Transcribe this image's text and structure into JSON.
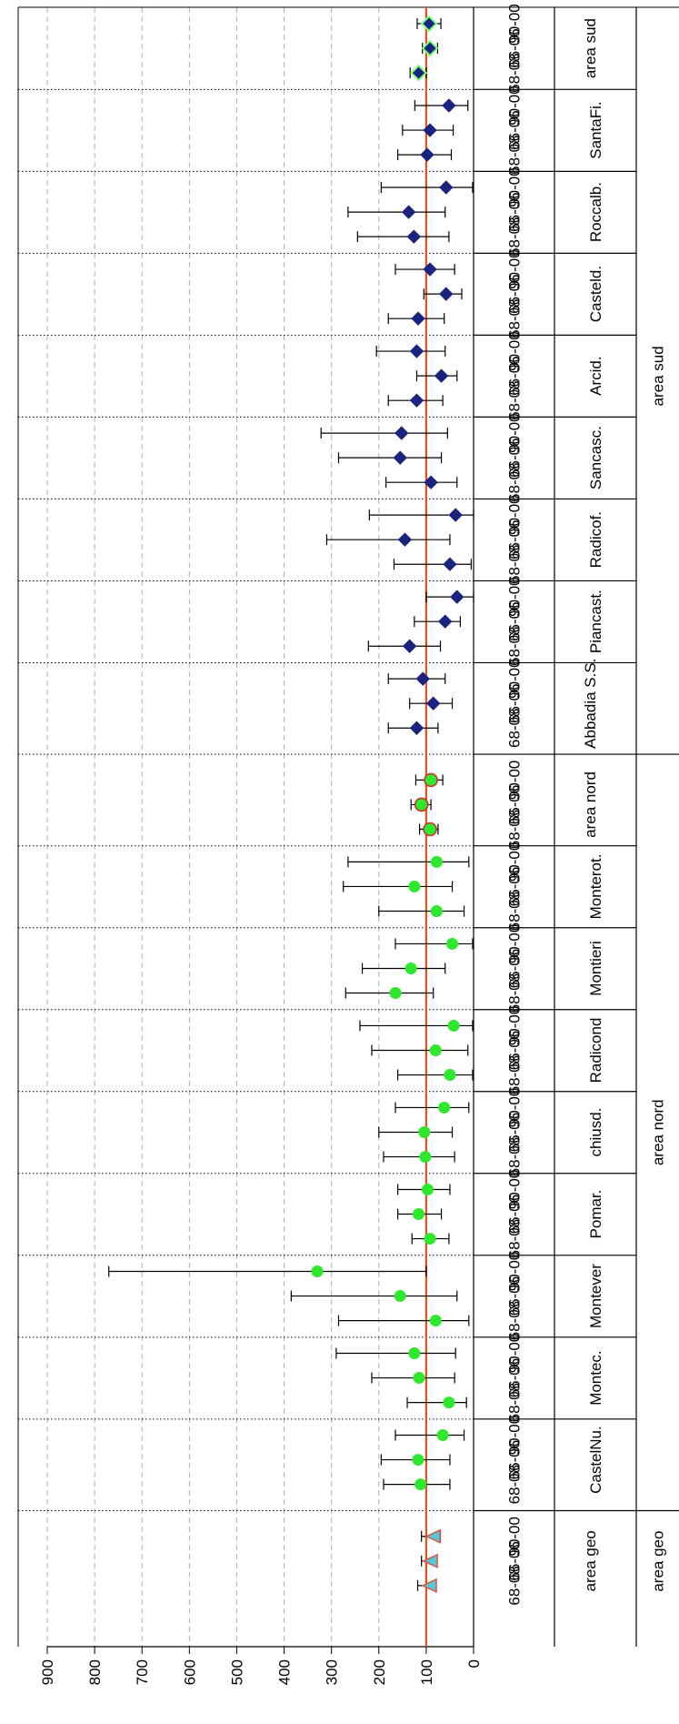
{
  "chart_data": {
    "type": "scatter",
    "orientation": "rotated-90",
    "value_axis": {
      "min": 0,
      "max": 900,
      "ticks": [
        "0",
        "100",
        "200",
        "300",
        "400",
        "500",
        "600",
        "700",
        "800",
        "900"
      ]
    },
    "reference_line": {
      "value": 100,
      "color": "#e0521b"
    },
    "colors": {
      "area_sud_point": "#1a237e",
      "area_sud_summary": "#7cff7c",
      "area_nord_point": "#2ee82e",
      "area_nord_summary_edge": "#d0312d",
      "area_geo_point": "#58c7d6",
      "area_geo_edge": "#e2503c",
      "grid": "#b0b0b0"
    },
    "groups": [
      {
        "label": "area sud",
        "sites": [
          {
            "name": "area sud",
            "marker": "diamond-summary",
            "periods": [
              {
                "period": "90-00",
                "value": 94,
                "low": 69,
                "high": 119
              },
              {
                "period": "66-06",
                "value": 92,
                "low": 76,
                "high": 108
              },
              {
                "period": "68-08",
                "value": 116,
                "low": 100,
                "high": 134
              }
            ]
          },
          {
            "name": "SantaFi.",
            "marker": "diamond",
            "periods": [
              {
                "period": "90-00",
                "value": 52,
                "low": 12,
                "high": 124
              },
              {
                "period": "66-06",
                "value": 92,
                "low": 43,
                "high": 150
              },
              {
                "period": "68-08",
                "value": 98,
                "low": 47,
                "high": 160
              }
            ]
          },
          {
            "name": "Roccalb.",
            "marker": "diamond",
            "periods": [
              {
                "period": "90-00",
                "value": 58,
                "low": 2,
                "high": 195
              },
              {
                "period": "66-06",
                "value": 137,
                "low": 60,
                "high": 265
              },
              {
                "period": "68-08",
                "value": 126,
                "low": 52,
                "high": 245
              }
            ]
          },
          {
            "name": "Casteld.",
            "marker": "diamond",
            "periods": [
              {
                "period": "90-00",
                "value": 92,
                "low": 40,
                "high": 165
              },
              {
                "period": "66-06",
                "value": 58,
                "low": 25,
                "high": 105
              },
              {
                "period": "68-08",
                "value": 117,
                "low": 62,
                "high": 180
              }
            ]
          },
          {
            "name": "Arcid.",
            "marker": "diamond",
            "periods": [
              {
                "period": "90-00",
                "value": 120,
                "low": 60,
                "high": 205
              },
              {
                "period": "66-06",
                "value": 68,
                "low": 35,
                "high": 120
              },
              {
                "period": "68-08",
                "value": 120,
                "low": 65,
                "high": 180
              }
            ]
          },
          {
            "name": "Sancasc.",
            "marker": "diamond",
            "periods": [
              {
                "period": "90-00",
                "value": 152,
                "low": 55,
                "high": 322
              },
              {
                "period": "66-06",
                "value": 155,
                "low": 68,
                "high": 285
              },
              {
                "period": "68-08",
                "value": 90,
                "low": 35,
                "high": 185
              }
            ]
          },
          {
            "name": "Radicof.",
            "marker": "diamond",
            "periods": [
              {
                "period": "90-00",
                "value": 38,
                "low": 0,
                "high": 220
              },
              {
                "period": "66-06",
                "value": 145,
                "low": 50,
                "high": 310
              },
              {
                "period": "68-08",
                "value": 50,
                "low": 5,
                "high": 168
              }
            ]
          },
          {
            "name": "Piancast.",
            "marker": "diamond",
            "periods": [
              {
                "period": "90-00",
                "value": 35,
                "low": 0,
                "high": 100
              },
              {
                "period": "66-06",
                "value": 60,
                "low": 28,
                "high": 125
              },
              {
                "period": "68-08",
                "value": 135,
                "low": 70,
                "high": 222
              }
            ]
          },
          {
            "name": "Abbadia S.S.",
            "marker": "diamond",
            "periods": [
              {
                "period": "90-00",
                "value": 107,
                "low": 60,
                "high": 180
              },
              {
                "period": "66-06",
                "value": 85,
                "low": 45,
                "high": 135
              },
              {
                "period": "68-08",
                "value": 120,
                "low": 75,
                "high": 180
              }
            ]
          }
        ]
      },
      {
        "label": "area nord",
        "sites": [
          {
            "name": "area nord",
            "marker": "circle-summary",
            "periods": [
              {
                "period": "90-00",
                "value": 90,
                "low": 65,
                "high": 122
              },
              {
                "period": "66-06",
                "value": 110,
                "low": 90,
                "high": 132
              },
              {
                "period": "68-08",
                "value": 92,
                "low": 75,
                "high": 114
              }
            ]
          },
          {
            "name": "Monterot.",
            "marker": "circle",
            "periods": [
              {
                "period": "90-00",
                "value": 78,
                "low": 10,
                "high": 265
              },
              {
                "period": "66-06",
                "value": 125,
                "low": 45,
                "high": 275
              },
              {
                "period": "68-08",
                "value": 78,
                "low": 20,
                "high": 200
              }
            ]
          },
          {
            "name": "Montieri",
            "marker": "circle",
            "periods": [
              {
                "period": "90-00",
                "value": 45,
                "low": 2,
                "high": 165
              },
              {
                "period": "66-06",
                "value": 132,
                "low": 60,
                "high": 235
              },
              {
                "period": "68-08",
                "value": 165,
                "low": 85,
                "high": 270
              }
            ]
          },
          {
            "name": "Radicond",
            "marker": "circle",
            "periods": [
              {
                "period": "90-00",
                "value": 42,
                "low": 2,
                "high": 240
              },
              {
                "period": "66-06",
                "value": 80,
                "low": 12,
                "high": 215
              },
              {
                "period": "68-08",
                "value": 50,
                "low": 2,
                "high": 160
              }
            ]
          },
          {
            "name": "chiusd.",
            "marker": "circle",
            "periods": [
              {
                "period": "90-00",
                "value": 62,
                "low": 10,
                "high": 165
              },
              {
                "period": "66-06",
                "value": 104,
                "low": 45,
                "high": 200
              },
              {
                "period": "68-08",
                "value": 102,
                "low": 40,
                "high": 190
              }
            ]
          },
          {
            "name": "Pomar.",
            "marker": "circle",
            "periods": [
              {
                "period": "90-00",
                "value": 97,
                "low": 50,
                "high": 160
              },
              {
                "period": "66-06",
                "value": 116,
                "low": 68,
                "high": 160
              },
              {
                "period": "68-08",
                "value": 92,
                "low": 52,
                "high": 130
              }
            ]
          },
          {
            "name": "Montever",
            "marker": "circle",
            "periods": [
              {
                "period": "90-00",
                "value": 330,
                "low": 100,
                "high": 770
              },
              {
                "period": "66-06",
                "value": 155,
                "low": 35,
                "high": 385
              },
              {
                "period": "68-08",
                "value": 80,
                "low": 10,
                "high": 285
              }
            ]
          },
          {
            "name": "Montec.",
            "marker": "circle",
            "periods": [
              {
                "period": "90-00",
                "value": 125,
                "low": 38,
                "high": 290
              },
              {
                "period": "66-06",
                "value": 115,
                "low": 40,
                "high": 215
              },
              {
                "period": "68-08",
                "value": 52,
                "low": 15,
                "high": 140
              }
            ]
          },
          {
            "name": "CastelNu.",
            "marker": "circle",
            "periods": [
              {
                "period": "90-00",
                "value": 65,
                "low": 20,
                "high": 165
              },
              {
                "period": "66-06",
                "value": 117,
                "low": 50,
                "high": 195
              },
              {
                "period": "68-08",
                "value": 112,
                "low": 50,
                "high": 190
              }
            ]
          }
        ]
      },
      {
        "label": "area geo",
        "sites": [
          {
            "name": "area geo",
            "marker": "triangle",
            "periods": [
              {
                "period": "90-00",
                "value": 84,
                "low": 70,
                "high": 110
              },
              {
                "period": "66-06",
                "value": 90,
                "low": 80,
                "high": 110
              },
              {
                "period": "68-08",
                "value": 92,
                "low": 82,
                "high": 118
              }
            ]
          }
        ]
      }
    ]
  }
}
